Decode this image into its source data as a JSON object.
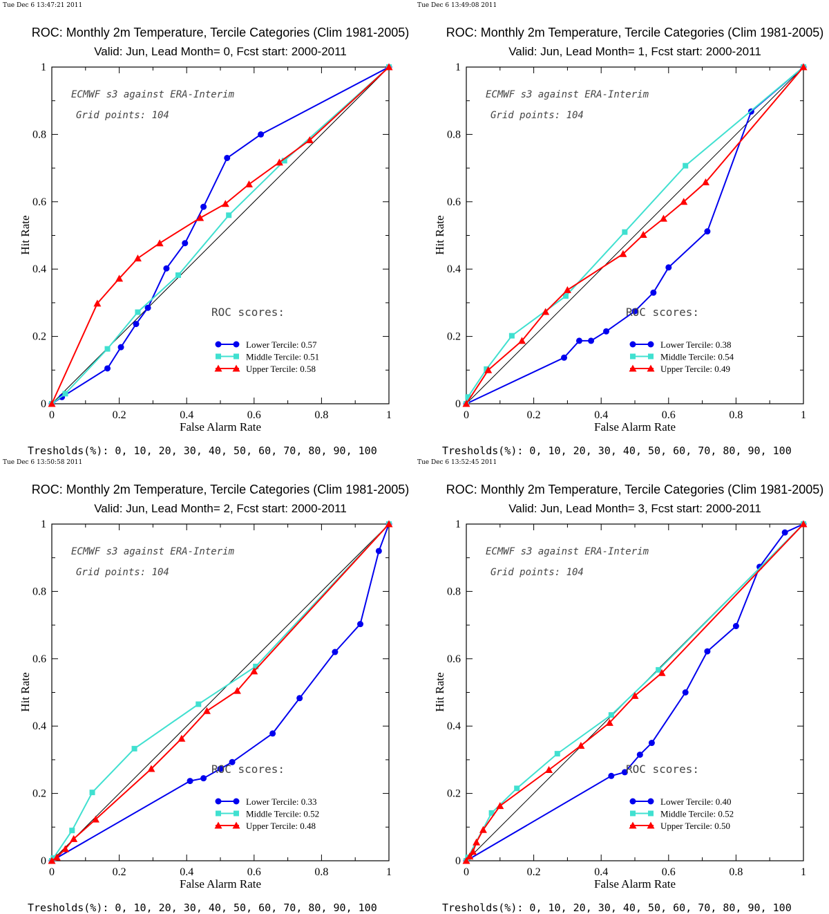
{
  "chart_data": [
    {
      "type": "line",
      "timestamp": "Tue Dec  6 13:47:21 2011",
      "title": "ROC: Monthly 2m Temperature, Tercile Categories (Clim 1981-2005)",
      "subtitle": "Valid: Jun, Lead Month= 0, Fcst start: 2000-2011",
      "xlabel": "False Alarm Rate",
      "ylabel": "Hit Rate",
      "xlim": [
        0,
        1
      ],
      "ylim": [
        0,
        1
      ],
      "x_ticks": [
        "0",
        "0.2",
        "0.4",
        "0.6",
        "0.8",
        "1"
      ],
      "y_ticks": [
        "0",
        "0.2",
        "0.4",
        "0.6",
        "0.8",
        "1"
      ],
      "annotation_1": "ECMWF s3 against ERA-Interim",
      "annotation_2": "Grid points:  104",
      "legend_title": "ROC scores:",
      "legend_position": "lower-right",
      "footer": "Tresholds(%): 0, 10, 20, 30, 40, 50, 60, 70, 80, 90, 100",
      "series": [
        {
          "name": "Lower Tercile",
          "score": "0.57",
          "label": "Lower Tercile: 0.57",
          "color": "#0000ee",
          "marker": "circle",
          "points": [
            [
              0,
              0
            ],
            [
              0.03,
              0.02
            ],
            [
              0.165,
              0.105
            ],
            [
              0.205,
              0.168
            ],
            [
              0.25,
              0.237
            ],
            [
              0.285,
              0.285
            ],
            [
              0.34,
              0.402
            ],
            [
              0.395,
              0.477
            ],
            [
              0.45,
              0.585
            ],
            [
              0.52,
              0.73
            ],
            [
              0.62,
              0.8
            ],
            [
              1,
              1
            ]
          ]
        },
        {
          "name": "Middle Tercile",
          "score": "0.51",
          "label": "Middle Tercile: 0.51",
          "color": "#40e0d0",
          "marker": "square",
          "points": [
            [
              0,
              0
            ],
            [
              0.04,
              0.03
            ],
            [
              0.165,
              0.163
            ],
            [
              0.255,
              0.272
            ],
            [
              0.375,
              0.382
            ],
            [
              0.525,
              0.56
            ],
            [
              0.69,
              0.722
            ],
            [
              1,
              1
            ]
          ]
        },
        {
          "name": "Upper Tercile",
          "score": "0.58",
          "label": "Upper Tercile: 0.58",
          "color": "#ff0000",
          "marker": "triangle",
          "points": [
            [
              0,
              0
            ],
            [
              0.135,
              0.298
            ],
            [
              0.2,
              0.372
            ],
            [
              0.255,
              0.432
            ],
            [
              0.32,
              0.477
            ],
            [
              0.44,
              0.552
            ],
            [
              0.515,
              0.594
            ],
            [
              0.585,
              0.652
            ],
            [
              0.675,
              0.717
            ],
            [
              0.765,
              0.783
            ],
            [
              1,
              1
            ]
          ]
        }
      ]
    },
    {
      "type": "line",
      "timestamp": "Tue Dec  6 13:49:08 2011",
      "title": "ROC: Monthly 2m Temperature, Tercile Categories (Clim 1981-2005)",
      "subtitle": "Valid: Jun, Lead Month= 1, Fcst start: 2000-2011",
      "xlabel": "False Alarm Rate",
      "ylabel": "Hit Rate",
      "xlim": [
        0,
        1
      ],
      "ylim": [
        0,
        1
      ],
      "x_ticks": [
        "0",
        "0.2",
        "0.4",
        "0.6",
        "0.8",
        "1"
      ],
      "y_ticks": [
        "0",
        "0.2",
        "0.4",
        "0.6",
        "0.8",
        "1"
      ],
      "annotation_1": "ECMWF s3 against ERA-Interim",
      "annotation_2": "Grid points:  104",
      "legend_title": "ROC scores:",
      "legend_position": "lower-right",
      "footer": "Tresholds(%): 0, 10, 20, 30, 40, 50, 60, 70, 80, 90, 100",
      "series": [
        {
          "name": "Lower Tercile",
          "score": "0.38",
          "label": "Lower Tercile: 0.38",
          "color": "#0000ee",
          "marker": "circle",
          "points": [
            [
              0,
              0
            ],
            [
              0.29,
              0.137
            ],
            [
              0.335,
              0.187
            ],
            [
              0.37,
              0.187
            ],
            [
              0.415,
              0.215
            ],
            [
              0.5,
              0.275
            ],
            [
              0.555,
              0.33
            ],
            [
              0.6,
              0.405
            ],
            [
              0.715,
              0.512
            ],
            [
              0.845,
              0.868
            ],
            [
              1,
              1
            ]
          ]
        },
        {
          "name": "Middle Tercile",
          "score": "0.54",
          "label": "Middle Tercile: 0.54",
          "color": "#40e0d0",
          "marker": "square",
          "points": [
            [
              0,
              0
            ],
            [
              0.005,
              0.02
            ],
            [
              0.06,
              0.103
            ],
            [
              0.135,
              0.202
            ],
            [
              0.295,
              0.32
            ],
            [
              0.47,
              0.51
            ],
            [
              0.65,
              0.707
            ],
            [
              1,
              1
            ]
          ]
        },
        {
          "name": "Upper Tercile",
          "score": "0.49",
          "label": "Upper Tercile: 0.49",
          "color": "#ff0000",
          "marker": "triangle",
          "points": [
            [
              0,
              0
            ],
            [
              0.065,
              0.1
            ],
            [
              0.165,
              0.187
            ],
            [
              0.235,
              0.273
            ],
            [
              0.3,
              0.338
            ],
            [
              0.465,
              0.445
            ],
            [
              0.525,
              0.502
            ],
            [
              0.585,
              0.55
            ],
            [
              0.645,
              0.6
            ],
            [
              0.71,
              0.658
            ],
            [
              1,
              1
            ]
          ]
        }
      ]
    },
    {
      "type": "line",
      "timestamp": "Tue Dec  6 13:50:58 2011",
      "title": "ROC: Monthly 2m Temperature, Tercile Categories (Clim 1981-2005)",
      "subtitle": "Valid: Jun, Lead Month= 2, Fcst start: 2000-2011",
      "xlabel": "False Alarm Rate",
      "ylabel": "Hit Rate",
      "xlim": [
        0,
        1
      ],
      "ylim": [
        0,
        1
      ],
      "x_ticks": [
        "0",
        "0.2",
        "0.4",
        "0.6",
        "0.8",
        "1"
      ],
      "y_ticks": [
        "0",
        "0.2",
        "0.4",
        "0.6",
        "0.8",
        "1"
      ],
      "annotation_1": "ECMWF s3 against ERA-Interim",
      "annotation_2": "Grid points:  104",
      "legend_title": "ROC scores:",
      "legend_position": "lower-right",
      "footer": "Tresholds(%): 0, 10, 20, 30, 40, 50, 60, 70, 80, 90, 100",
      "series": [
        {
          "name": "Lower Tercile",
          "score": "0.33",
          "label": "Lower Tercile: 0.33",
          "color": "#0000ee",
          "marker": "circle",
          "points": [
            [
              0,
              0
            ],
            [
              0.41,
              0.237
            ],
            [
              0.45,
              0.245
            ],
            [
              0.5,
              0.273
            ],
            [
              0.535,
              0.293
            ],
            [
              0.655,
              0.378
            ],
            [
              0.735,
              0.483
            ],
            [
              0.84,
              0.62
            ],
            [
              0.915,
              0.703
            ],
            [
              0.97,
              0.92
            ],
            [
              1,
              1
            ]
          ]
        },
        {
          "name": "Middle Tercile",
          "score": "0.52",
          "label": "Middle Tercile: 0.52",
          "color": "#40e0d0",
          "marker": "square",
          "points": [
            [
              0,
              0
            ],
            [
              0.005,
              0.008
            ],
            [
              0.06,
              0.09
            ],
            [
              0.12,
              0.203
            ],
            [
              0.245,
              0.333
            ],
            [
              0.435,
              0.465
            ],
            [
              0.605,
              0.577
            ],
            [
              1,
              1
            ]
          ]
        },
        {
          "name": "Upper Tercile",
          "score": "0.48",
          "label": "Upper Tercile: 0.48",
          "color": "#ff0000",
          "marker": "triangle",
          "points": [
            [
              0,
              0
            ],
            [
              0.015,
              0.01
            ],
            [
              0.04,
              0.035
            ],
            [
              0.065,
              0.065
            ],
            [
              0.13,
              0.123
            ],
            [
              0.295,
              0.273
            ],
            [
              0.385,
              0.363
            ],
            [
              0.46,
              0.445
            ],
            [
              0.55,
              0.505
            ],
            [
              0.6,
              0.563
            ],
            [
              1,
              1
            ]
          ]
        }
      ]
    },
    {
      "type": "line",
      "timestamp": "Tue Dec  6 13:52:45 2011",
      "title": "ROC: Monthly 2m Temperature, Tercile Categories (Clim 1981-2005)",
      "subtitle": "Valid: Jun, Lead Month= 3, Fcst start: 2000-2011",
      "xlabel": "False Alarm Rate",
      "ylabel": "Hit Rate",
      "xlim": [
        0,
        1
      ],
      "ylim": [
        0,
        1
      ],
      "x_ticks": [
        "0",
        "0.2",
        "0.4",
        "0.6",
        "0.8",
        "1"
      ],
      "y_ticks": [
        "0",
        "0.2",
        "0.4",
        "0.6",
        "0.8",
        "1"
      ],
      "annotation_1": "ECMWF s3 against ERA-Interim",
      "annotation_2": "Grid points:  104",
      "legend_title": "ROC scores:",
      "legend_position": "lower-right",
      "footer": "Tresholds(%): 0, 10, 20, 30, 40, 50, 60, 70, 80, 90, 100",
      "series": [
        {
          "name": "Lower Tercile",
          "score": "0.40",
          "label": "Lower Tercile: 0.40",
          "color": "#0000ee",
          "marker": "circle",
          "points": [
            [
              0,
              0
            ],
            [
              0.43,
              0.252
            ],
            [
              0.47,
              0.263
            ],
            [
              0.515,
              0.315
            ],
            [
              0.55,
              0.35
            ],
            [
              0.65,
              0.5
            ],
            [
              0.715,
              0.622
            ],
            [
              0.8,
              0.697
            ],
            [
              0.87,
              0.873
            ],
            [
              0.945,
              0.975
            ],
            [
              1,
              1
            ]
          ]
        },
        {
          "name": "Middle Tercile",
          "score": "0.52",
          "label": "Middle Tercile: 0.52",
          "color": "#40e0d0",
          "marker": "square",
          "points": [
            [
              0,
              0
            ],
            [
              0.005,
              0.01
            ],
            [
              0.075,
              0.142
            ],
            [
              0.15,
              0.215
            ],
            [
              0.27,
              0.318
            ],
            [
              0.43,
              0.433
            ],
            [
              0.57,
              0.567
            ],
            [
              1,
              1
            ]
          ]
        },
        {
          "name": "Upper Tercile",
          "score": "0.50",
          "label": "Upper Tercile: 0.50",
          "color": "#ff0000",
          "marker": "triangle",
          "points": [
            [
              0,
              0
            ],
            [
              0.01,
              0.013
            ],
            [
              0.02,
              0.027
            ],
            [
              0.03,
              0.055
            ],
            [
              0.05,
              0.092
            ],
            [
              0.1,
              0.163
            ],
            [
              0.245,
              0.27
            ],
            [
              0.34,
              0.342
            ],
            [
              0.425,
              0.41
            ],
            [
              0.5,
              0.49
            ],
            [
              0.58,
              0.558
            ],
            [
              1,
              1
            ]
          ]
        }
      ]
    }
  ]
}
